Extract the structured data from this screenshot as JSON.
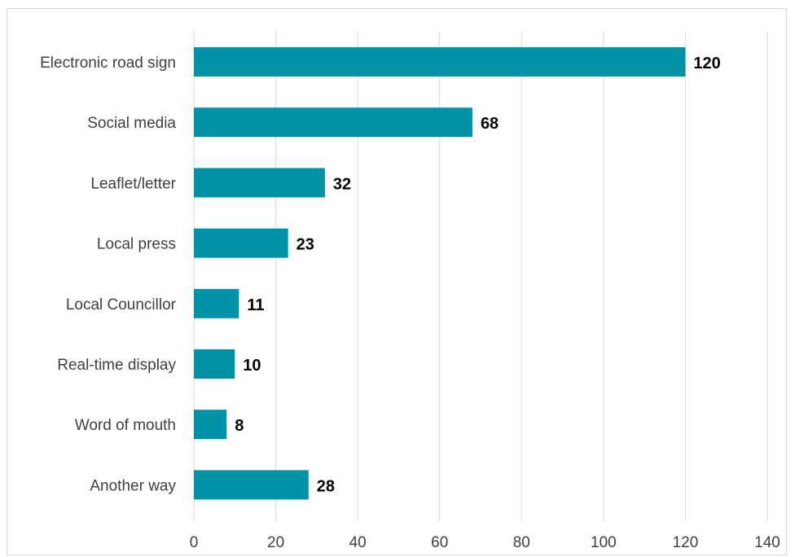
{
  "chart_data": {
    "type": "bar",
    "orientation": "horizontal",
    "title": "",
    "xlabel": "",
    "ylabel": "",
    "categories": [
      "Electronic road sign",
      "Social media",
      "Leaflet/letter",
      "Local press",
      "Local Councillor",
      "Real-time display",
      "Word of mouth",
      "Another way"
    ],
    "values": [
      120,
      68,
      32,
      23,
      11,
      10,
      8,
      28
    ],
    "xlim": [
      0,
      140
    ],
    "xticks": [
      0,
      20,
      40,
      60,
      80,
      100,
      120,
      140
    ],
    "grid": "vertical",
    "legend": "none",
    "bar_color": "#0093a8",
    "data_labels": true
  }
}
